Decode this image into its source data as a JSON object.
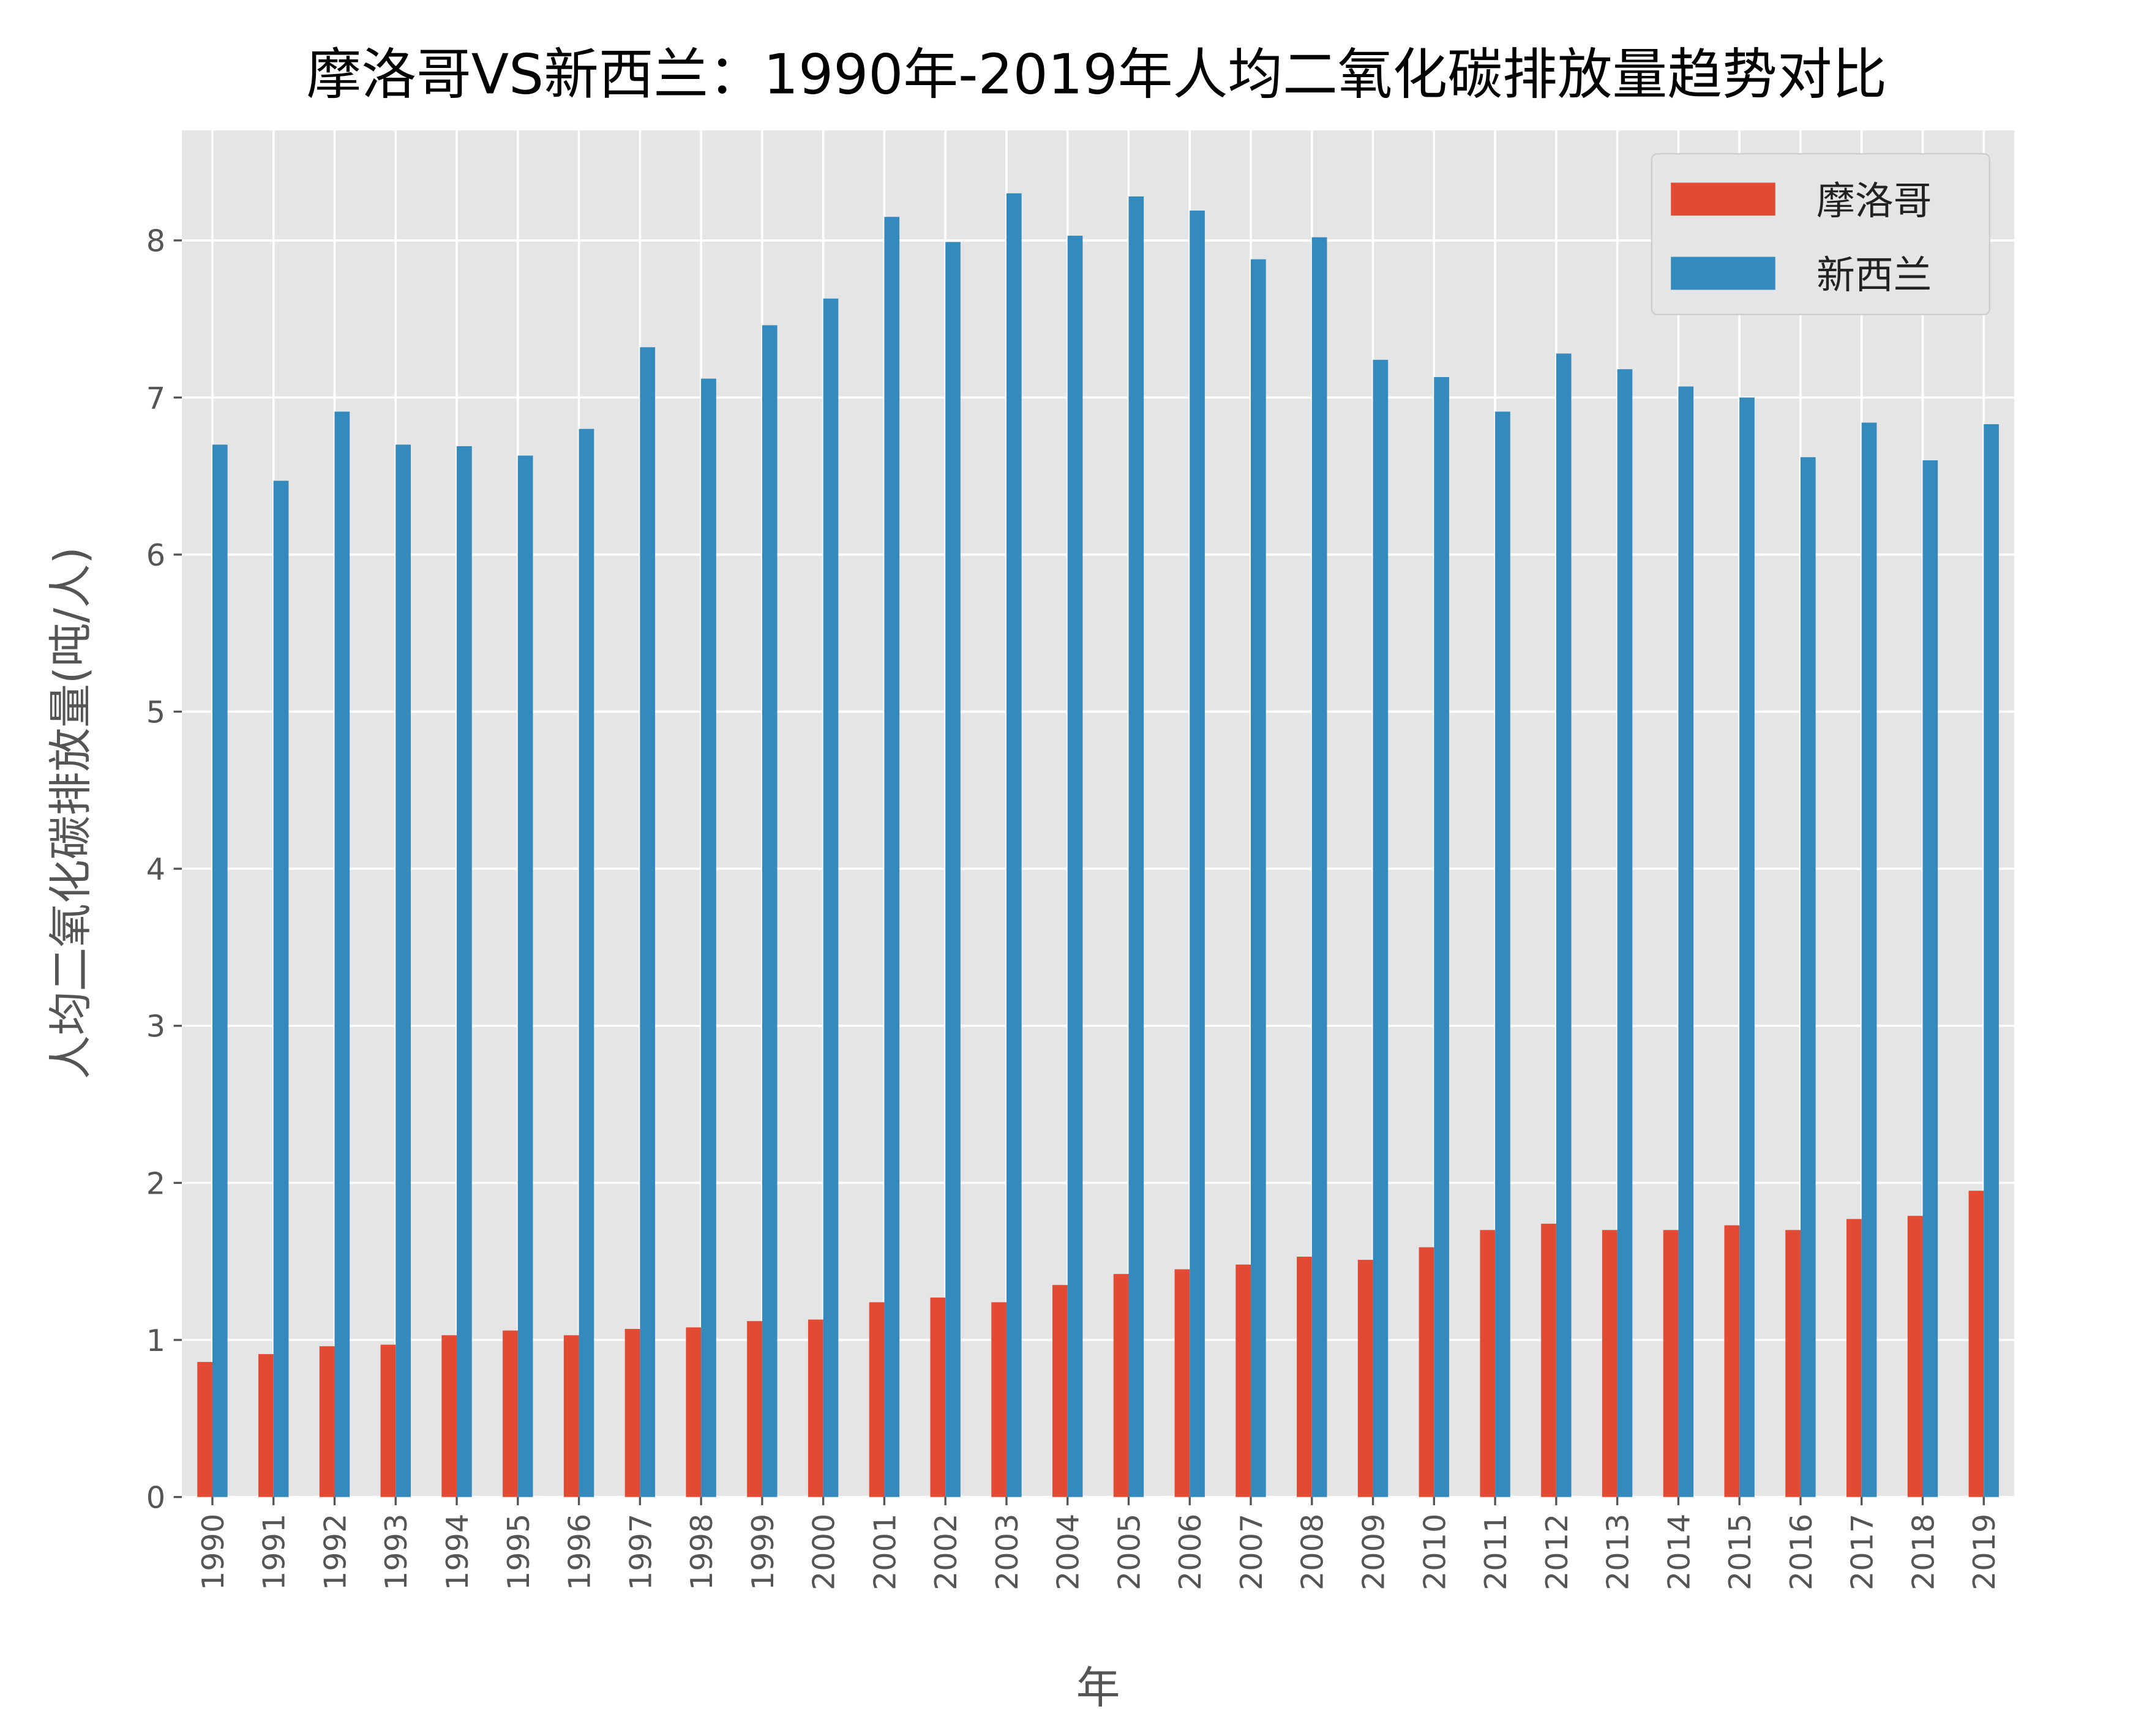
{
  "chart_data": {
    "type": "bar",
    "title": "摩洛哥VS新西兰：1990年-2019年人均二氧化碳排放量趋势对比",
    "xlabel": "年",
    "ylabel": "人均二氧化碳排放量(吨/人)",
    "ylim": [
      0,
      8.7
    ],
    "yticks": [
      0,
      1,
      2,
      3,
      4,
      5,
      6,
      7,
      8
    ],
    "grid": true,
    "legend_position": "top-right",
    "background": "#E5E5E5",
    "categories": [
      "1990",
      "1991",
      "1992",
      "1993",
      "1994",
      "1995",
      "1996",
      "1997",
      "1998",
      "1999",
      "2000",
      "2001",
      "2002",
      "2003",
      "2004",
      "2005",
      "2006",
      "2007",
      "2008",
      "2009",
      "2010",
      "2011",
      "2012",
      "2013",
      "2014",
      "2015",
      "2016",
      "2017",
      "2018",
      "2019"
    ],
    "series": [
      {
        "name": "摩洛哥",
        "color": "#E24A33",
        "values": [
          0.86,
          0.91,
          0.96,
          0.97,
          1.03,
          1.06,
          1.03,
          1.07,
          1.08,
          1.12,
          1.13,
          1.24,
          1.27,
          1.24,
          1.35,
          1.42,
          1.45,
          1.48,
          1.53,
          1.51,
          1.59,
          1.7,
          1.74,
          1.7,
          1.7,
          1.73,
          1.7,
          1.77,
          1.79,
          1.95
        ]
      },
      {
        "name": "新西兰",
        "color": "#348ABD",
        "values": [
          6.7,
          6.47,
          6.91,
          6.7,
          6.69,
          6.63,
          6.8,
          7.32,
          7.12,
          7.46,
          7.63,
          8.15,
          7.99,
          8.3,
          8.03,
          8.28,
          8.19,
          7.88,
          8.02,
          7.24,
          7.13,
          6.91,
          7.28,
          7.18,
          7.07,
          7.0,
          6.62,
          6.84,
          6.6,
          6.83
        ]
      }
    ]
  }
}
